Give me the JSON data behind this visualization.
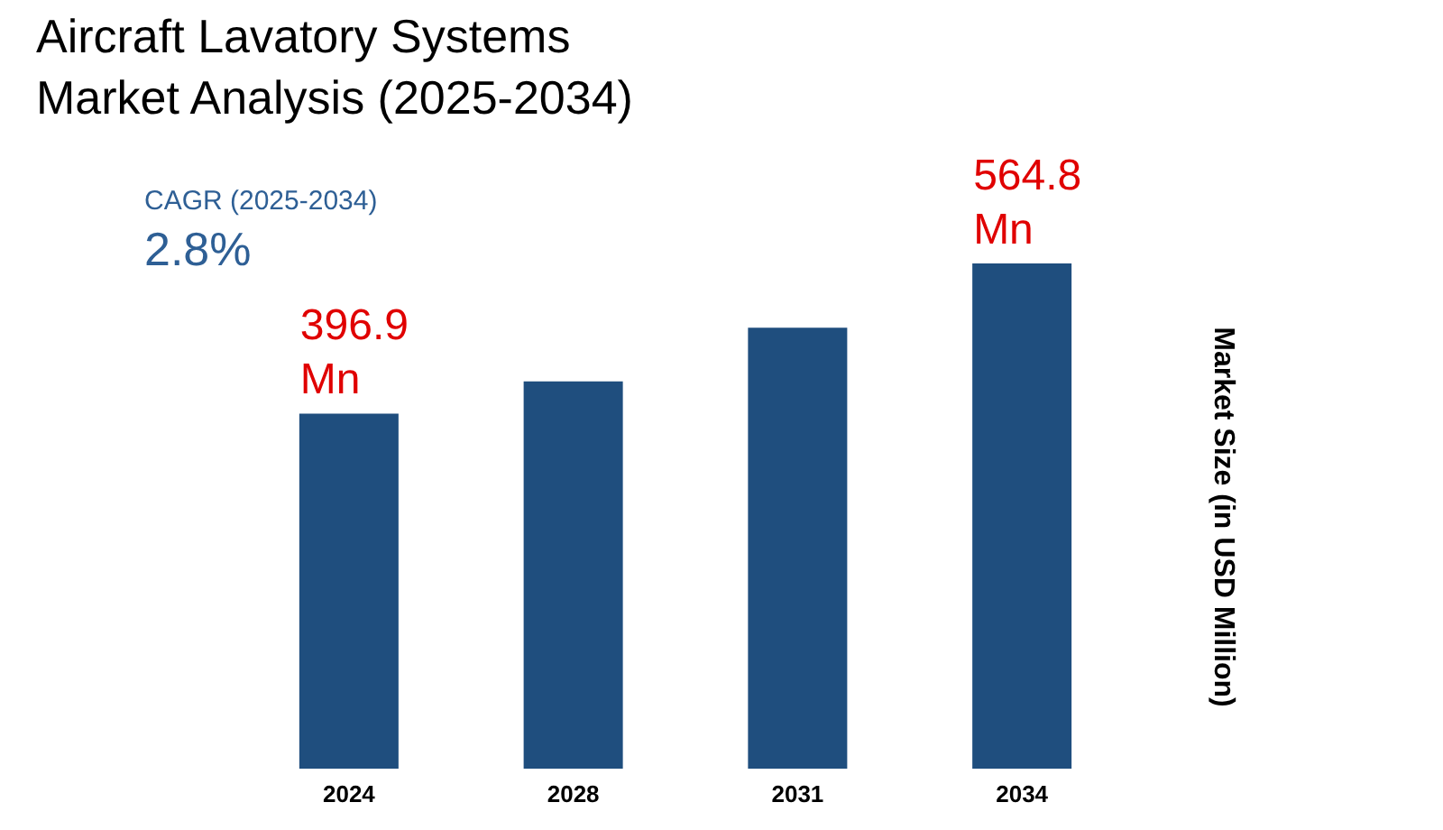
{
  "chart_data": {
    "type": "bar",
    "title": "Aircraft Lavatory Systems Market Analysis (2025-2034)",
    "categories": [
      "2024",
      "2028",
      "2031",
      "2034"
    ],
    "values": [
      396.9,
      433,
      493,
      564.8
    ],
    "color": "#1f4e7e",
    "value_labels": [
      "396.9 Mn",
      null,
      null,
      "564.8 Mn"
    ],
    "ylabel": "Market Size (in  USD Million)",
    "annotations": [
      "CAGR (2025-2034)",
      "2.8%"
    ],
    "grid": false
  }
}
